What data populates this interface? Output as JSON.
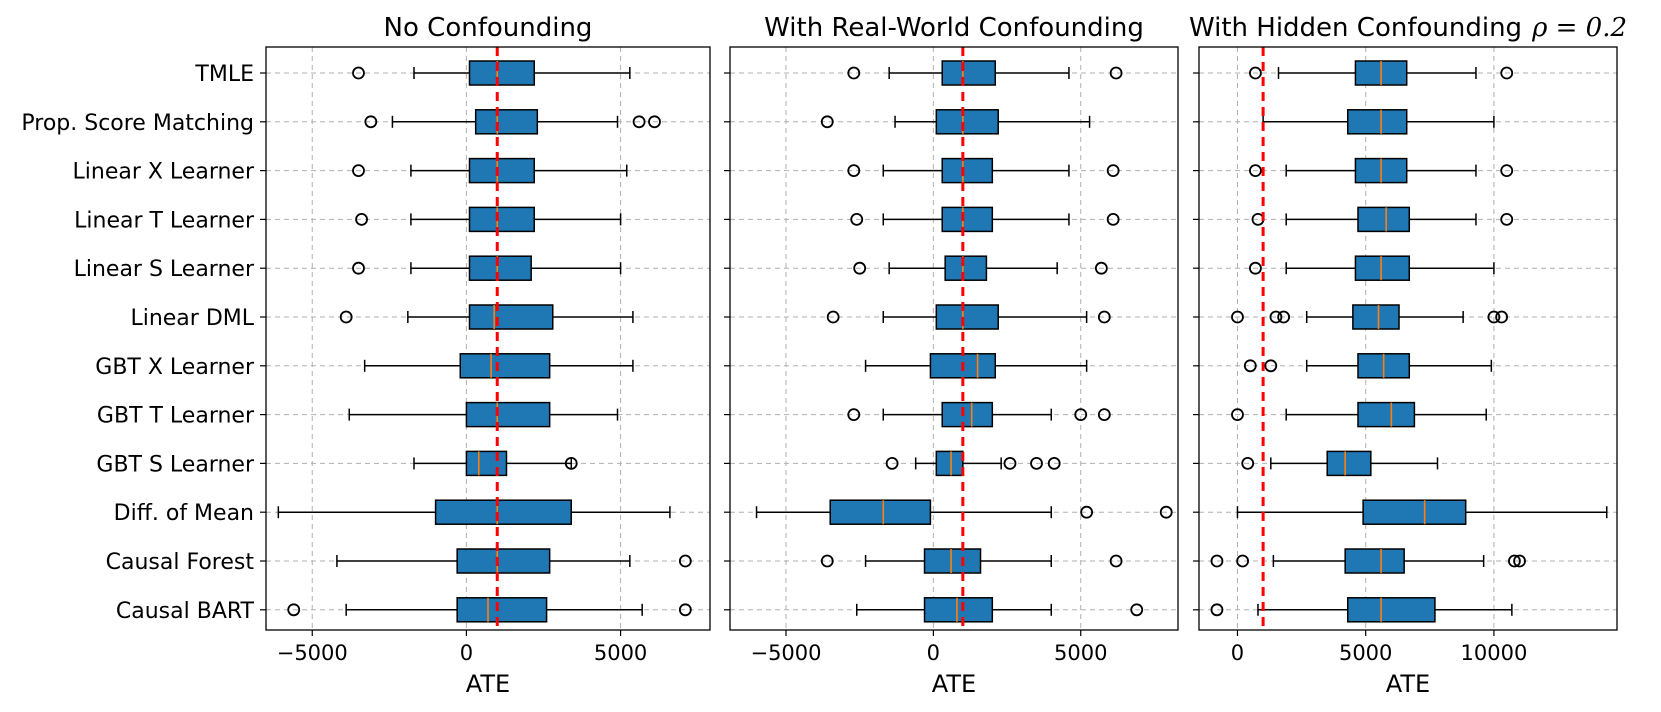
{
  "methods": [
    "TMLE",
    "Prop. Score Matching",
    "Linear X Learner",
    "Linear T Learner",
    "Linear S Learner",
    "Linear DML",
    "GBT X Learner",
    "GBT T Learner",
    "GBT S Learner",
    "Diff. of Mean",
    "Causal Forest",
    "Causal BART"
  ],
  "colors": {
    "box": "#1f77b4",
    "median": "#ff7f0e",
    "reference_line": "#ff0000",
    "grid": "#b0b0b0"
  },
  "chart_data": [
    {
      "type": "boxplot",
      "title": "No Confounding",
      "xlabel": "ATE",
      "xlim": [
        -6500,
        7900
      ],
      "xticks": [
        {
          "value": -5000,
          "label": "−5000"
        },
        {
          "value": 0,
          "label": "0"
        },
        {
          "value": 5000,
          "label": "5000"
        }
      ],
      "grid": true,
      "reference_line": 1000,
      "boxes": [
        {
          "method": "TMLE",
          "whislo": -1700,
          "q1": 100,
          "med": 1000,
          "q3": 2200,
          "whishi": 5300,
          "fliers": [
            -3500
          ]
        },
        {
          "method": "Prop. Score Matching",
          "whislo": -2400,
          "q1": 300,
          "med": 1000,
          "q3": 2300,
          "whishi": 4900,
          "fliers": [
            -3100,
            5600,
            6100
          ]
        },
        {
          "method": "Linear X Learner",
          "whislo": -1800,
          "q1": 100,
          "med": 1000,
          "q3": 2200,
          "whishi": 5200,
          "fliers": [
            -3500
          ]
        },
        {
          "method": "Linear T Learner",
          "whislo": -1800,
          "q1": 100,
          "med": 1000,
          "q3": 2200,
          "whishi": 5000,
          "fliers": [
            -3400
          ]
        },
        {
          "method": "Linear S Learner",
          "whislo": -1800,
          "q1": 100,
          "med": 1000,
          "q3": 2100,
          "whishi": 5000,
          "fliers": [
            -3500
          ]
        },
        {
          "method": "Linear DML",
          "whislo": -1900,
          "q1": 100,
          "med": 900,
          "q3": 2800,
          "whishi": 5400,
          "fliers": [
            -3900
          ]
        },
        {
          "method": "GBT X Learner",
          "whislo": -3300,
          "q1": -200,
          "med": 800,
          "q3": 2700,
          "whishi": 5400,
          "fliers": []
        },
        {
          "method": "GBT T Learner",
          "whislo": -3800,
          "q1": 0,
          "med": 1000,
          "q3": 2700,
          "whishi": 4900,
          "fliers": []
        },
        {
          "method": "GBT S Learner",
          "whislo": -1700,
          "q1": 0,
          "med": 400,
          "q3": 1300,
          "whishi": 3400,
          "fliers": [
            3400
          ]
        },
        {
          "method": "Diff. of Mean",
          "whislo": -6100,
          "q1": -1000,
          "med": 1000,
          "q3": 3400,
          "whishi": 6600,
          "fliers": []
        },
        {
          "method": "Causal Forest",
          "whislo": -4200,
          "q1": -300,
          "med": 1000,
          "q3": 2700,
          "whishi": 5300,
          "fliers": [
            7100
          ]
        },
        {
          "method": "Causal BART",
          "whislo": -3900,
          "q1": -300,
          "med": 700,
          "q3": 2600,
          "whishi": 5700,
          "fliers": [
            -5600,
            7100
          ]
        }
      ]
    },
    {
      "type": "boxplot",
      "title": "With Real-World Confounding",
      "xlabel": "ATE",
      "xlim": [
        -6900,
        8300
      ],
      "xticks": [
        {
          "value": -5000,
          "label": "−5000"
        },
        {
          "value": 0,
          "label": "0"
        },
        {
          "value": 5000,
          "label": "5000"
        }
      ],
      "grid": true,
      "reference_line": 1000,
      "boxes": [
        {
          "method": "TMLE",
          "whislo": -1500,
          "q1": 300,
          "med": 1000,
          "q3": 2100,
          "whishi": 4600,
          "fliers": [
            -2700,
            6200
          ]
        },
        {
          "method": "Prop. Score Matching",
          "whislo": -1300,
          "q1": 100,
          "med": 1000,
          "q3": 2200,
          "whishi": 5300,
          "fliers": [
            -3600
          ]
        },
        {
          "method": "Linear X Learner",
          "whislo": -1700,
          "q1": 300,
          "med": 1000,
          "q3": 2000,
          "whishi": 4600,
          "fliers": [
            -2700,
            6100
          ]
        },
        {
          "method": "Linear T Learner",
          "whislo": -1700,
          "q1": 300,
          "med": 1000,
          "q3": 2000,
          "whishi": 4600,
          "fliers": [
            -2600,
            6100
          ]
        },
        {
          "method": "Linear S Learner",
          "whislo": -1500,
          "q1": 400,
          "med": 1000,
          "q3": 1800,
          "whishi": 4200,
          "fliers": [
            -2500,
            5700
          ]
        },
        {
          "method": "Linear DML",
          "whislo": -1700,
          "q1": 100,
          "med": 1000,
          "q3": 2200,
          "whishi": 5200,
          "fliers": [
            -3400,
            5800
          ]
        },
        {
          "method": "GBT X Learner",
          "whislo": -2300,
          "q1": -100,
          "med": 1500,
          "q3": 2100,
          "whishi": 5200,
          "fliers": []
        },
        {
          "method": "GBT T Learner",
          "whislo": -1700,
          "q1": 300,
          "med": 1300,
          "q3": 2000,
          "whishi": 4000,
          "fliers": [
            -2700,
            5000,
            5800
          ]
        },
        {
          "method": "GBT S Learner",
          "whislo": -600,
          "q1": 100,
          "med": 600,
          "q3": 1000,
          "whishi": 2300,
          "fliers": [
            -1400,
            2600,
            3500,
            4100
          ]
        },
        {
          "method": "Diff. of Mean",
          "whislo": -6000,
          "q1": -3500,
          "med": -1700,
          "q3": -100,
          "whishi": 4000,
          "fliers": [
            5200,
            7900
          ]
        },
        {
          "method": "Causal Forest",
          "whislo": -2300,
          "q1": -300,
          "med": 600,
          "q3": 1600,
          "whishi": 4000,
          "fliers": [
            -3600,
            6200
          ]
        },
        {
          "method": "Causal BART",
          "whislo": -2600,
          "q1": -300,
          "med": 800,
          "q3": 2000,
          "whishi": 4000,
          "fliers": [
            6900
          ]
        }
      ]
    },
    {
      "type": "boxplot",
      "title": "With Hidden Confounding",
      "title_math": "ρ = 0.2",
      "xlabel": "ATE",
      "xlim": [
        -1500,
        14800
      ],
      "xticks": [
        {
          "value": 0,
          "label": "0"
        },
        {
          "value": 5000,
          "label": "5000"
        },
        {
          "value": 10000,
          "label": "10000"
        }
      ],
      "grid": true,
      "reference_line": 1000,
      "boxes": [
        {
          "method": "TMLE",
          "whislo": 1600,
          "q1": 4600,
          "med": 5600,
          "q3": 6600,
          "whishi": 9300,
          "fliers": [
            700,
            10500
          ]
        },
        {
          "method": "Prop. Score Matching",
          "whislo": 1000,
          "q1": 4300,
          "med": 5600,
          "q3": 6600,
          "whishi": 10000,
          "fliers": []
        },
        {
          "method": "Linear X Learner",
          "whislo": 1900,
          "q1": 4600,
          "med": 5600,
          "q3": 6600,
          "whishi": 9300,
          "fliers": [
            700,
            10500
          ]
        },
        {
          "method": "Linear T Learner",
          "whislo": 1900,
          "q1": 4700,
          "med": 5800,
          "q3": 6700,
          "whishi": 9300,
          "fliers": [
            800,
            10500
          ]
        },
        {
          "method": "Linear S Learner",
          "whislo": 1900,
          "q1": 4600,
          "med": 5600,
          "q3": 6700,
          "whishi": 10000,
          "fliers": [
            700
          ]
        },
        {
          "method": "Linear DML",
          "whislo": 2700,
          "q1": 4500,
          "med": 5500,
          "q3": 6300,
          "whishi": 8800,
          "fliers": [
            0,
            1500,
            1800,
            10000,
            10300
          ]
        },
        {
          "method": "GBT X Learner",
          "whislo": 2700,
          "q1": 4700,
          "med": 5700,
          "q3": 6700,
          "whishi": 9900,
          "fliers": [
            500,
            1300
          ]
        },
        {
          "method": "GBT T Learner",
          "whislo": 1900,
          "q1": 4700,
          "med": 6000,
          "q3": 6900,
          "whishi": 9700,
          "fliers": [
            0
          ]
        },
        {
          "method": "GBT S Learner",
          "whislo": 1300,
          "q1": 3500,
          "med": 4200,
          "q3": 5200,
          "whishi": 7800,
          "fliers": [
            400
          ]
        },
        {
          "method": "Diff. of Mean",
          "whislo": 0,
          "q1": 4900,
          "med": 7300,
          "q3": 8900,
          "whishi": 14400,
          "fliers": []
        },
        {
          "method": "Causal Forest",
          "whislo": 1400,
          "q1": 4200,
          "med": 5600,
          "q3": 6500,
          "whishi": 9600,
          "fliers": [
            -800,
            200,
            10800,
            11000
          ]
        },
        {
          "method": "Causal BART",
          "whislo": 800,
          "q1": 4300,
          "med": 5600,
          "q3": 7700,
          "whishi": 10700,
          "fliers": [
            -800
          ]
        }
      ]
    }
  ]
}
